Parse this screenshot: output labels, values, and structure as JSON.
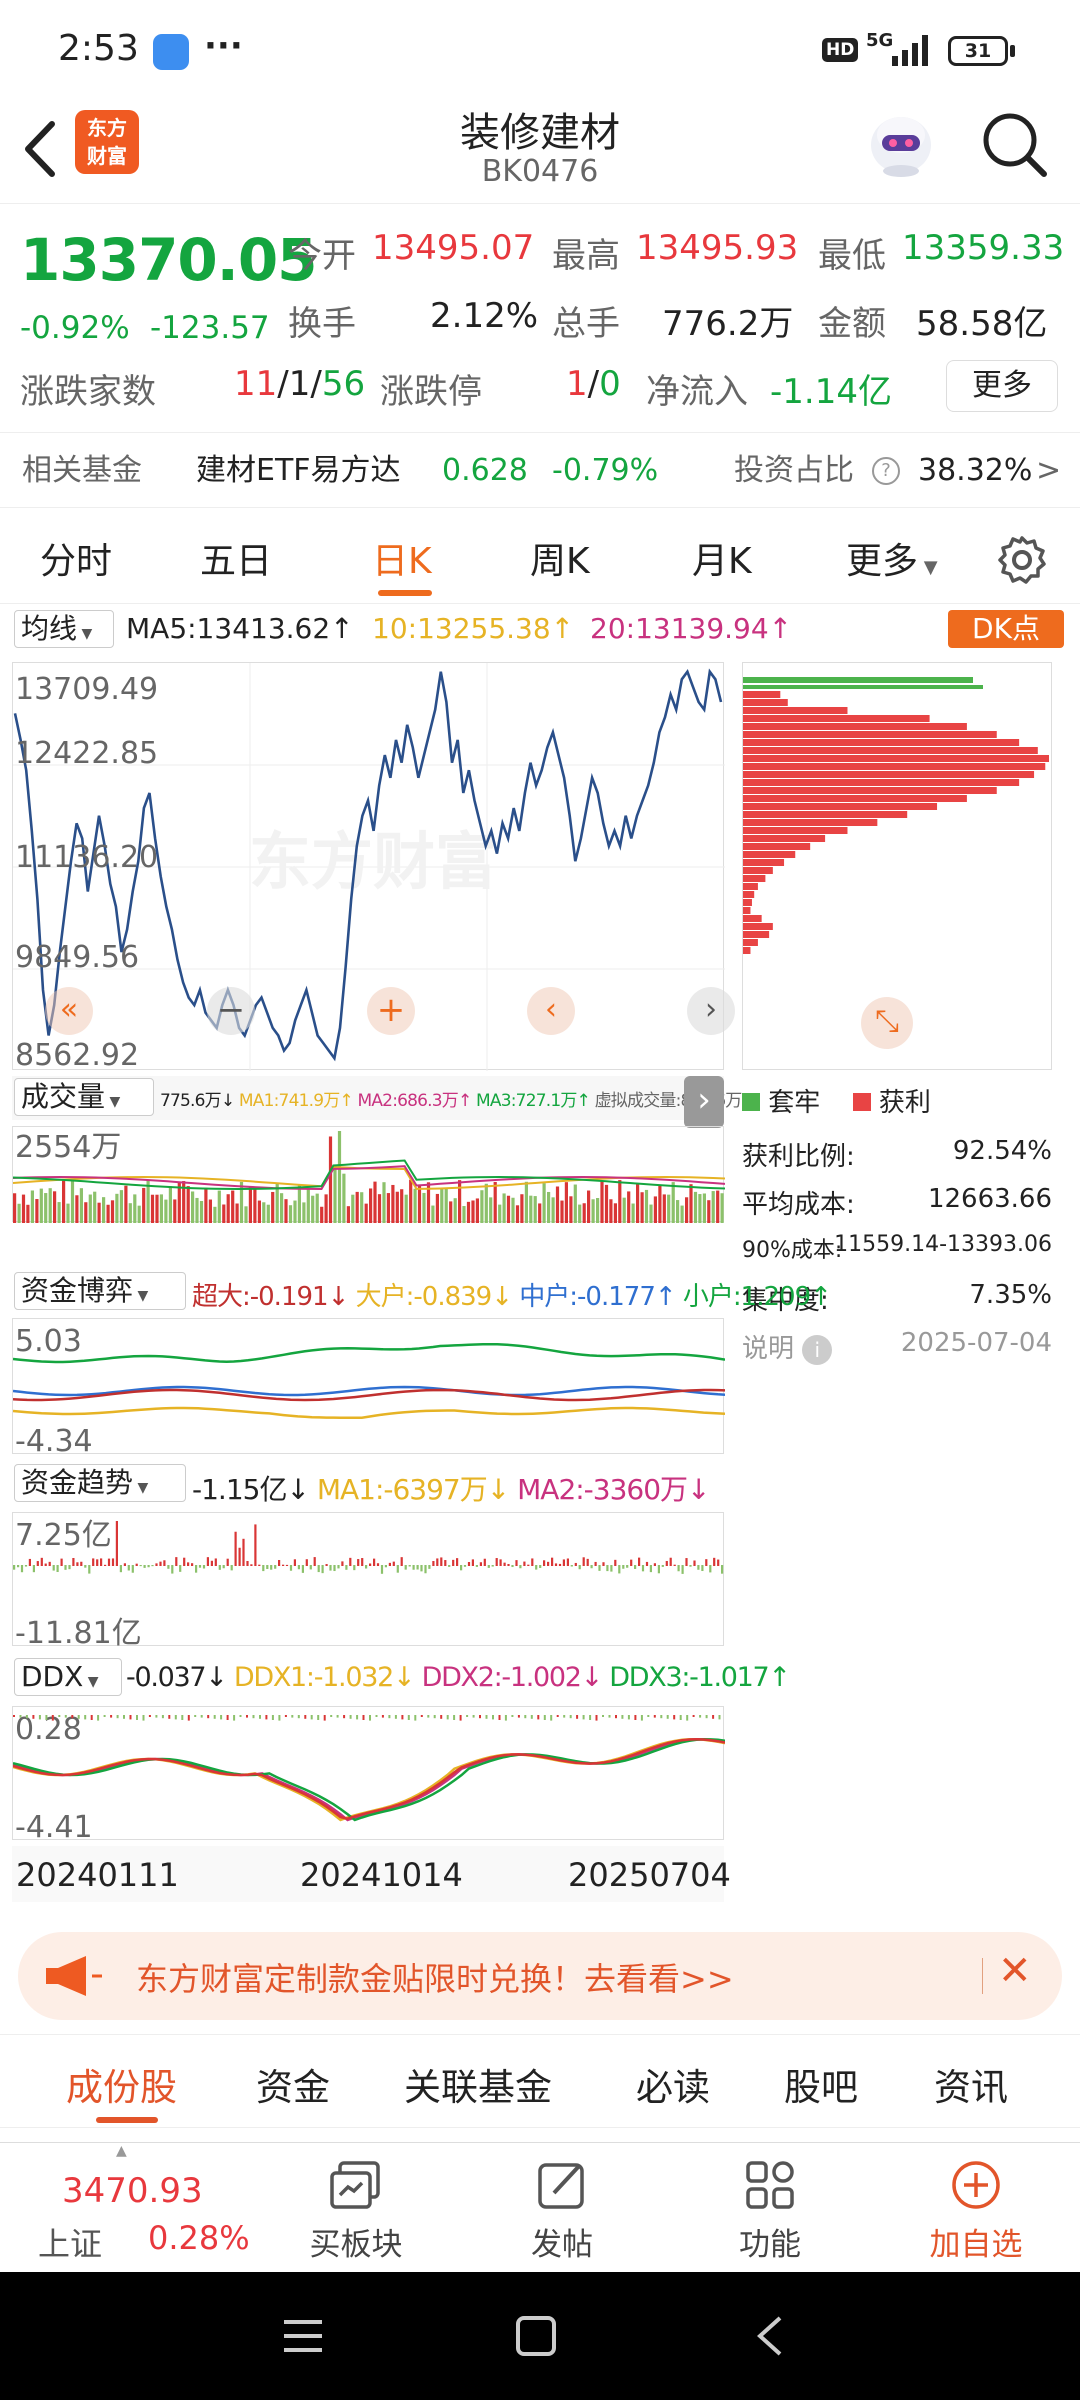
{
  "status": {
    "time": "2:53",
    "dots": "···",
    "battery": "31",
    "net": "5G",
    "hd": "HD"
  },
  "header": {
    "title": "装修建材",
    "code": "BK0476",
    "logo_line1": "东方",
    "logo_line2": "财富"
  },
  "quote": {
    "price": "13370.05",
    "change_pct": "-0.92%",
    "change": "-123.57",
    "open_label": "今开",
    "open": "13495.07",
    "high_label": "最高",
    "high": "13495.93",
    "low_label": "最低",
    "low": "13359.33",
    "turnover_label": "换手",
    "turnover": "2.12%",
    "volume_label": "总手",
    "volume": "776.2万",
    "amount_label": "金额",
    "amount": "58.58亿",
    "counts_label": "涨跌家数",
    "up": "11",
    "flat": "1",
    "down": "56",
    "sep": "/",
    "limit_label": "涨跌停",
    "limit_up": "1",
    "limit_down": "0",
    "net_label": "净流入",
    "net": "-1.14亿",
    "more": "更多"
  },
  "fund": {
    "label": "相关基金",
    "name": "建材ETF易方达",
    "price": "0.628",
    "pct": "-0.79%",
    "ratio_label": "投资占比",
    "ratio": "38.32%",
    "arrow": ">"
  },
  "tabs": {
    "items": [
      "分时",
      "五日",
      "日K",
      "周K",
      "月K",
      "更多"
    ],
    "active": 2
  },
  "ma": {
    "selector": "均线",
    "ma5": "MA5:13413.62↑",
    "ma10": "10:13255.38↑",
    "ma20": "20:13139.94↑",
    "dk": "DK点"
  },
  "kchart": {
    "labels": [
      "13709.49",
      "12422.85",
      "11136.20",
      "9849.56",
      "8562.92"
    ],
    "watermark": "东方财富",
    "series": [
      13150,
      12800,
      12400,
      11600,
      10700,
      9500,
      8900,
      9300,
      10000,
      10600,
      11200,
      11700,
      11500,
      10800,
      11300,
      11800,
      11400,
      10900,
      10600,
      10000,
      10300,
      10800,
      11200,
      11900,
      12100,
      11500,
      11000,
      10600,
      10300,
      9900,
      9600,
      9400,
      9300,
      9500,
      9200,
      9100,
      9000,
      9300,
      9500,
      9300,
      9000,
      8900,
      9100,
      9300,
      9400,
      9200,
      9000,
      8900,
      8700,
      8800,
      9100,
      9300,
      9500,
      9200,
      8900,
      8800,
      8700,
      8600,
      9000,
      9800,
      10700,
      11400,
      11800,
      12000,
      11600,
      12200,
      12600,
      12300,
      12800,
      12500,
      13000,
      12700,
      12300,
      12600,
      12900,
      13200,
      13700,
      13300,
      12500,
      12800,
      12100,
      12400,
      12000,
      11700,
      11400,
      11600,
      11300,
      11700,
      11500,
      11900,
      11600,
      12100,
      12500,
      12200,
      12400,
      12700,
      12900,
      12600,
      12300,
      11800,
      11200,
      11500,
      11900,
      12300,
      12100,
      11700,
      11400,
      11600,
      11400,
      11800,
      11500,
      11800,
      12000,
      12200,
      12500,
      12900,
      13100,
      13400,
      13200,
      13600,
      13700,
      13500,
      13300,
      13200,
      13700,
      13600,
      13300
    ],
    "profit": [
      50,
      60,
      140,
      250,
      300,
      340,
      370,
      395,
      410,
      405,
      390,
      370,
      340,
      300,
      260,
      220,
      180,
      140,
      110,
      90,
      70,
      55,
      40,
      30,
      20,
      15,
      12,
      10,
      25,
      40,
      35,
      20,
      10
    ],
    "legend_trap": "套牢",
    "legend_profit": "获利"
  },
  "chip": {
    "profit_label": "获利比例:",
    "profit": "92.54%",
    "avg_label": "平均成本:",
    "avg": "12663.66",
    "c90_label": "90%成本:",
    "c90": "11559.14-13393.06",
    "conc_label": "集中度:",
    "conc": "7.35%",
    "note": "说明",
    "date": "2025-07-04"
  },
  "vol": {
    "selector": "成交量",
    "v": "775.6万↓",
    "ma1": "MA1:741.9万↑",
    "ma2": "MA2:686.3万↑",
    "ma3": "MA3:727.1万↑",
    "virt": "虚拟成交量:810.6万",
    "top": "2554万"
  },
  "capital": {
    "selector": "资金博弈",
    "a": "超大:-0.191↓",
    "b": "大户:-0.839↓",
    "c": "中户:-0.177↑",
    "d": "小户:1.209↑",
    "top": "5.03",
    "bot": "-4.34"
  },
  "trend": {
    "selector": "资金趋势",
    "v": "-1.15亿↓",
    "ma1": "MA1:-6397万↓",
    "ma2": "MA2:-3360万↓",
    "top": "7.25亿",
    "bot": "-11.81亿"
  },
  "ddx": {
    "selector": "DDX",
    "v": "-0.037↓",
    "d1": "DDX1:-1.032↓",
    "d2": "DDX2:-1.002↓",
    "d3": "DDX3:-1.017↑",
    "top": "0.28",
    "bot": "-4.41"
  },
  "dates": [
    "20240111",
    "20241014",
    "20250704"
  ],
  "banner": {
    "text": "东方财富定制款金贴限时兑换！去看看>>"
  },
  "bottom_tabs": {
    "items": [
      "成份股",
      "资金",
      "关联基金",
      "必读",
      "股吧",
      "资讯"
    ],
    "active": 0
  },
  "nav": {
    "index_value": "3470.93",
    "index_name": "上证",
    "index_pct": "0.28%",
    "items": [
      "买板块",
      "发帖",
      "功能",
      "加自选"
    ]
  },
  "colors": {
    "red": "#e8383d",
    "green": "#14a53f",
    "accent": "#ee6b1e",
    "blue": "#2a4f8a"
  }
}
